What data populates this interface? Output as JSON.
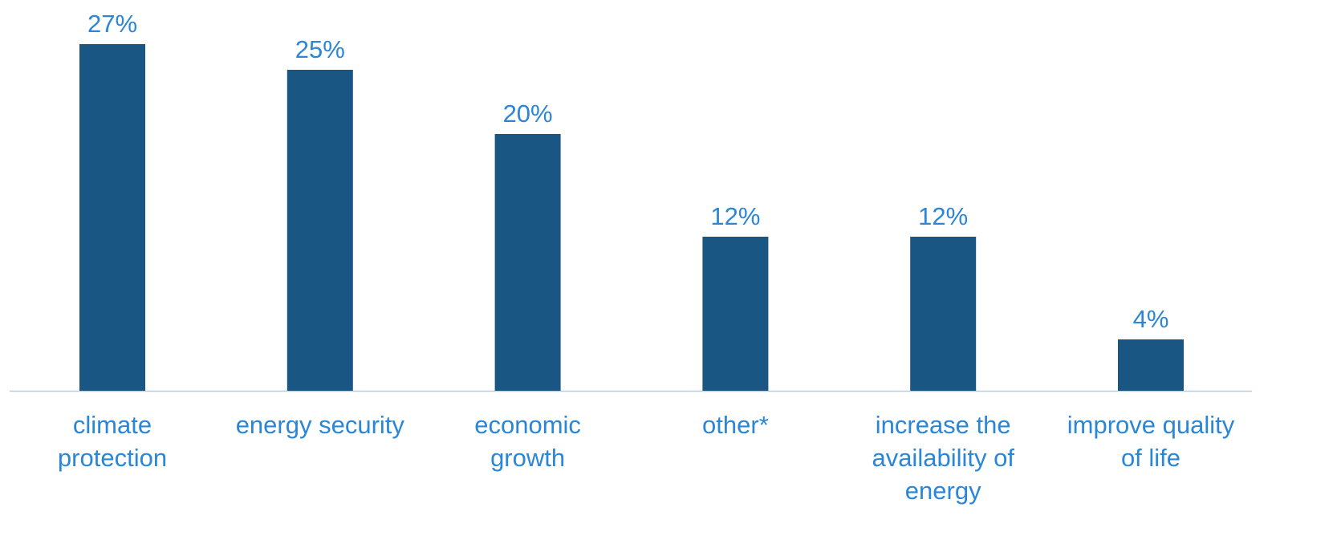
{
  "chart_data": {
    "type": "bar",
    "categories": [
      [
        "climate",
        "protection"
      ],
      [
        "energy security"
      ],
      [
        "economic",
        "growth"
      ],
      [
        "other*"
      ],
      [
        "increase the",
        "availability of",
        "energy"
      ],
      [
        "improve quality",
        "of life"
      ]
    ],
    "values": [
      27,
      25,
      20,
      12,
      12,
      4
    ],
    "value_labels": [
      "27%",
      "25%",
      "20%",
      "12%",
      "12%",
      "4%"
    ],
    "ylim": [
      0,
      28
    ],
    "grid": false,
    "legend": "none",
    "colors": {
      "bar": "#1a5684",
      "label": "#2a86d6",
      "axis": "#b8cbe0"
    }
  }
}
